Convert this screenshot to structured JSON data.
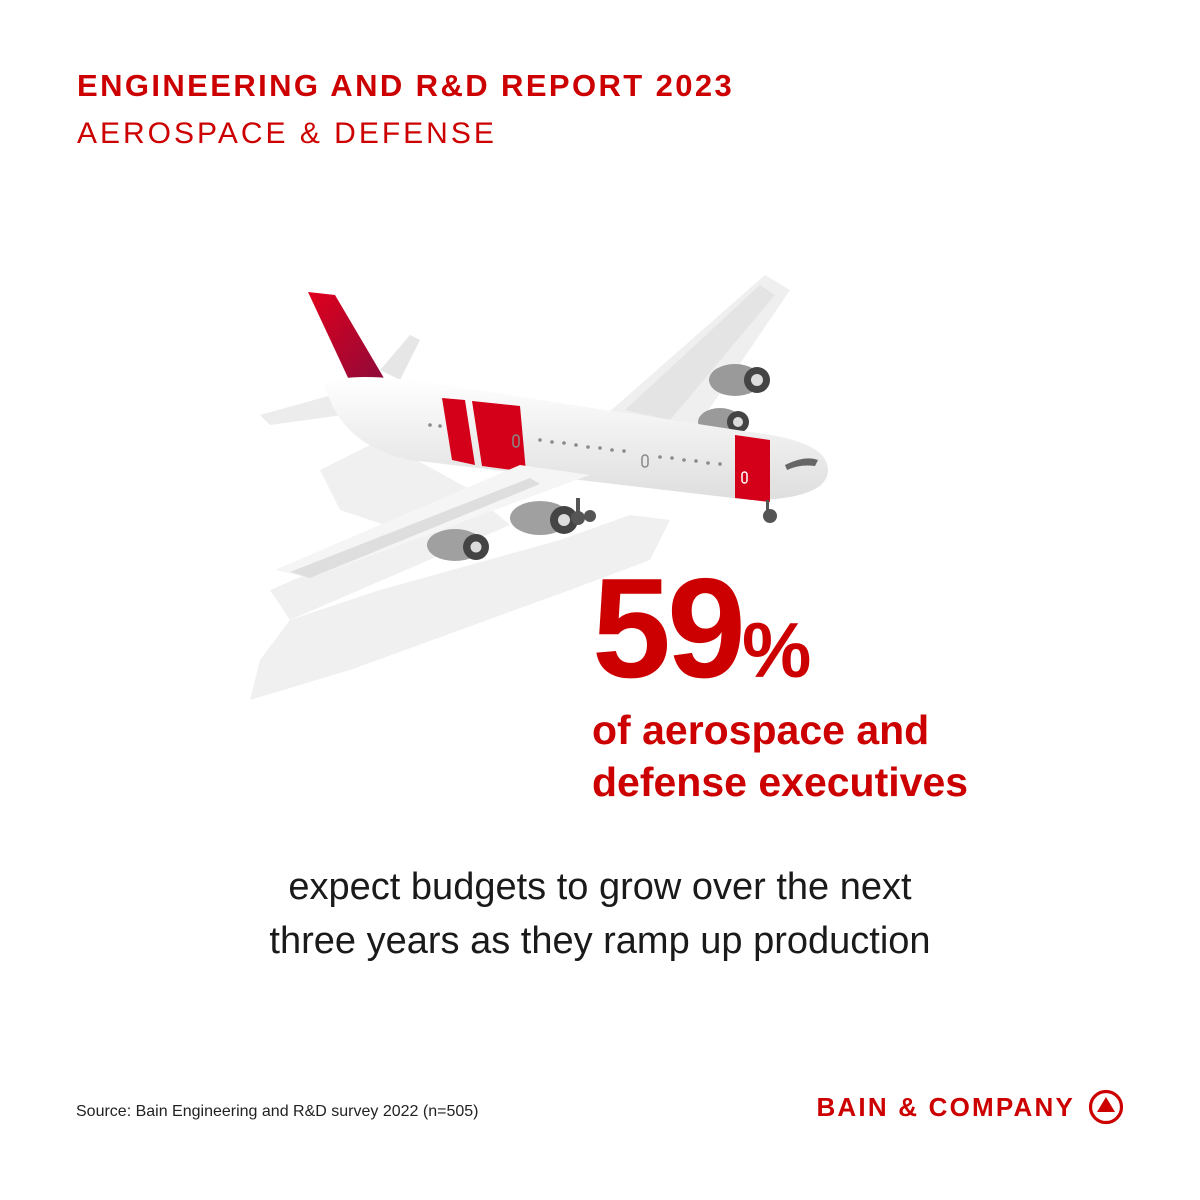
{
  "header": {
    "title": "ENGINEERING AND R&D REPORT 2023",
    "subtitle": "AEROSPACE & DEFENSE"
  },
  "illustration": {
    "icon": "airplane-icon",
    "colors": {
      "accent": "#cc0000",
      "body": "#f2f2f2",
      "shadow": "#efefef"
    }
  },
  "stat": {
    "number": "59",
    "unit": "%",
    "caption_line1": "of aerospace and",
    "caption_line2": "defense executives"
  },
  "body": {
    "line1": "expect budgets to grow over the next",
    "line2": "three years as they ramp up production"
  },
  "footer": {
    "source": "Source: Bain Engineering and R&D survey 2022 (n=505)",
    "brand": "BAIN & COMPANY",
    "brand_icon": "bain-logo-icon"
  }
}
